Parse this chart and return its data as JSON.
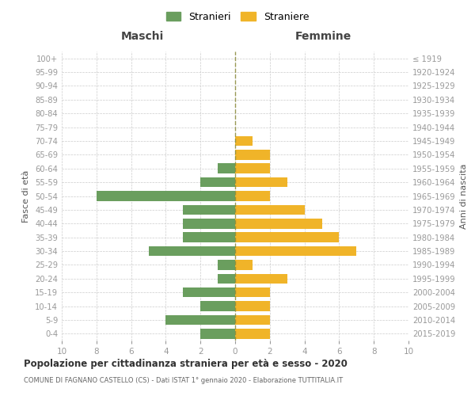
{
  "age_groups": [
    "0-4",
    "5-9",
    "10-14",
    "15-19",
    "20-24",
    "25-29",
    "30-34",
    "35-39",
    "40-44",
    "45-49",
    "50-54",
    "55-59",
    "60-64",
    "65-69",
    "70-74",
    "75-79",
    "80-84",
    "85-89",
    "90-94",
    "95-99",
    "100+"
  ],
  "birth_years": [
    "2015-2019",
    "2010-2014",
    "2005-2009",
    "2000-2004",
    "1995-1999",
    "1990-1994",
    "1985-1989",
    "1980-1984",
    "1975-1979",
    "1970-1974",
    "1965-1969",
    "1960-1964",
    "1955-1959",
    "1950-1954",
    "1945-1949",
    "1940-1944",
    "1935-1939",
    "1930-1934",
    "1925-1929",
    "1920-1924",
    "≤ 1919"
  ],
  "males": [
    2,
    4,
    2,
    3,
    1,
    1,
    5,
    3,
    3,
    3,
    8,
    2,
    1,
    0,
    0,
    0,
    0,
    0,
    0,
    0,
    0
  ],
  "females": [
    2,
    2,
    2,
    2,
    3,
    1,
    7,
    6,
    5,
    4,
    2,
    3,
    2,
    2,
    1,
    0,
    0,
    0,
    0,
    0,
    0
  ],
  "male_color": "#6a9e5e",
  "female_color": "#f0b429",
  "center_line_color": "#8b8b3a",
  "grid_color": "#cccccc",
  "label_color": "#999999",
  "title": "Popolazione per cittadinanza straniera per età e sesso - 2020",
  "subtitle": "COMUNE DI FAGNANO CASTELLO (CS) - Dati ISTAT 1° gennaio 2020 - Elaborazione TUTTITALIA.IT",
  "xlabel_left": "Maschi",
  "xlabel_right": "Femmine",
  "ylabel_left": "Fasce di età",
  "ylabel_right": "Anni di nascita",
  "legend_stranieri": "Stranieri",
  "legend_straniere": "Straniere",
  "xlim": 10
}
